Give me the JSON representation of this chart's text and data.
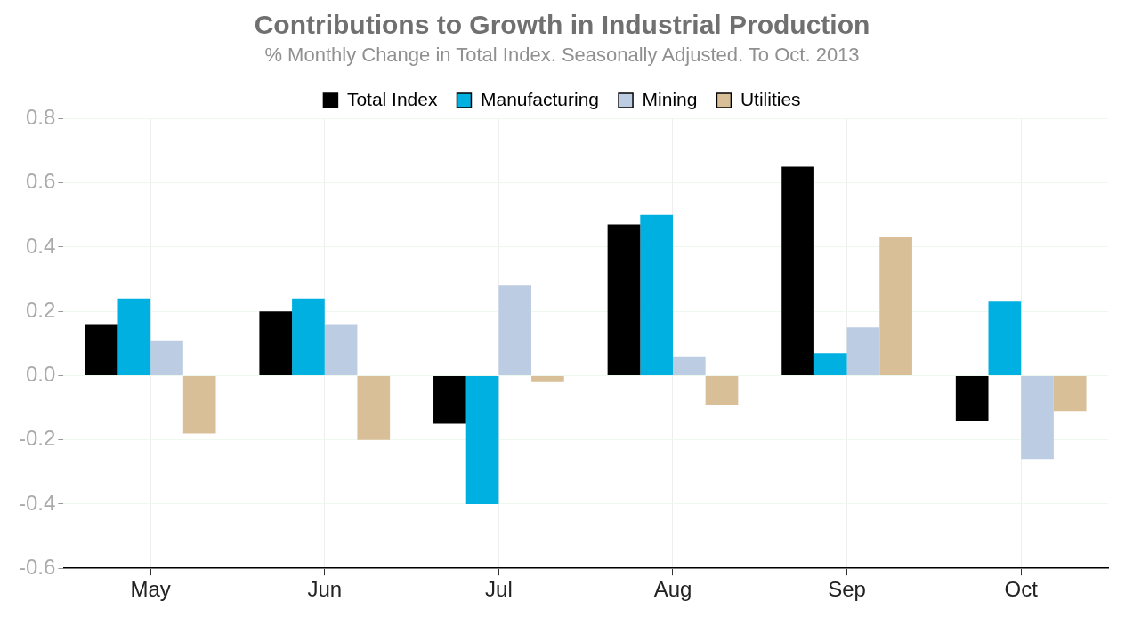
{
  "chart_data": {
    "type": "bar",
    "title": "Contributions to Growth in Industrial Production",
    "subtitle": "% Monthly Change in Total Index. Seasonally Adjusted. To Oct. 2013",
    "categories": [
      "May",
      "Jun",
      "Jul",
      "Aug",
      "Sep",
      "Oct"
    ],
    "series": [
      {
        "name": "Total Index",
        "color": "#000000",
        "values": [
          0.16,
          0.2,
          -0.15,
          0.47,
          0.65,
          -0.14
        ]
      },
      {
        "name": "Manufacturing",
        "color": "#00b0e0",
        "values": [
          0.24,
          0.24,
          -0.4,
          0.5,
          0.07,
          0.23
        ]
      },
      {
        "name": "Mining",
        "color": "#bccde3",
        "values": [
          0.11,
          0.16,
          0.28,
          0.06,
          0.15,
          -0.26
        ]
      },
      {
        "name": "Utilities",
        "color": "#d9bf98",
        "values": [
          -0.18,
          -0.2,
          -0.02,
          -0.09,
          0.43,
          -0.11
        ]
      }
    ],
    "ylim": [
      -0.6,
      0.8
    ],
    "yticks": [
      {
        "value": -0.6,
        "label": "-0.6"
      },
      {
        "value": -0.4,
        "label": "-0.4"
      },
      {
        "value": -0.2,
        "label": "-0.2"
      },
      {
        "value": 0,
        "label": "0.0"
      },
      {
        "value": 0.2,
        "label": "0.2"
      },
      {
        "value": 0.4,
        "label": "0.4"
      },
      {
        "value": 0.6,
        "label": "0.6"
      },
      {
        "value": 0.8,
        "label": "0.8"
      }
    ],
    "grid": true,
    "legend": "top"
  }
}
